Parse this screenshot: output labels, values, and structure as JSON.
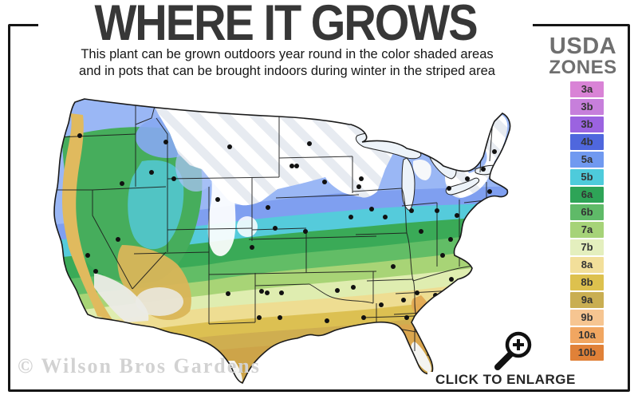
{
  "header": {
    "title": "WHERE IT GROWS",
    "subtitle_line1": "This plant can be grown outdoors year round in the color shaded areas",
    "subtitle_line2": "and in pots that can be brought indoors during winter in the striped area"
  },
  "legend": {
    "title_line1": "USDA",
    "title_line2": "ZONES",
    "zones": [
      {
        "label": "3a",
        "color": "#d983d6"
      },
      {
        "label": "3b",
        "color": "#c77fdb"
      },
      {
        "label": "3b",
        "color": "#9b63e0"
      },
      {
        "label": "4b",
        "color": "#4f67dd"
      },
      {
        "label": "5a",
        "color": "#7099f0"
      },
      {
        "label": "5b",
        "color": "#4ecbdb"
      },
      {
        "label": "6a",
        "color": "#2ea457"
      },
      {
        "label": "6b",
        "color": "#5fba68"
      },
      {
        "label": "7a",
        "color": "#a6d378"
      },
      {
        "label": "7b",
        "color": "#e4efbe"
      },
      {
        "label": "8a",
        "color": "#f2df9a"
      },
      {
        "label": "8b",
        "color": "#ddc14e"
      },
      {
        "label": "9a",
        "color": "#c9ae52"
      },
      {
        "label": "9b",
        "color": "#f6c591"
      },
      {
        "label": "10a",
        "color": "#f1a661"
      },
      {
        "label": "10b",
        "color": "#e08138"
      }
    ]
  },
  "map": {
    "colors": {
      "band_base": "#cda449",
      "band_9a": "#cfae50",
      "band_8b": "#dcc052",
      "band_8a": "#eedd92",
      "band_7b": "#dfedb0",
      "band_7a": "#a8d476",
      "band_6b": "#62bd66",
      "band_6a": "#3aaa57",
      "band_5b": "#55cbdb",
      "band_5a": "#7f9ff0",
      "band_4b": "#9ab7f5",
      "west_green": "#46ad5c",
      "basin_teal": "#54c8d6",
      "idaho_blue": "#86a9f2",
      "idaho_blue_light": "#a9c3f5",
      "rockies_white": "#ffffff",
      "coast_tan": "#e0ba5e",
      "desert_pale": "#ebebe6",
      "southwest_tan": "#d9b558",
      "southeast_orange": "#e2a953",
      "north_florida_orange": "#daa64e",
      "white_zone": "#f4f4f1",
      "lake": "#edf3f9",
      "stripe_gray": "#e7ebf1",
      "stripe_white": "#ffffff",
      "border_line": "#1a1a1a",
      "dot": "#111111"
    }
  },
  "footer": {
    "watermark": "© Wilson Bros Gardens",
    "enlarge_label": "CLICK TO ENLARGE"
  }
}
